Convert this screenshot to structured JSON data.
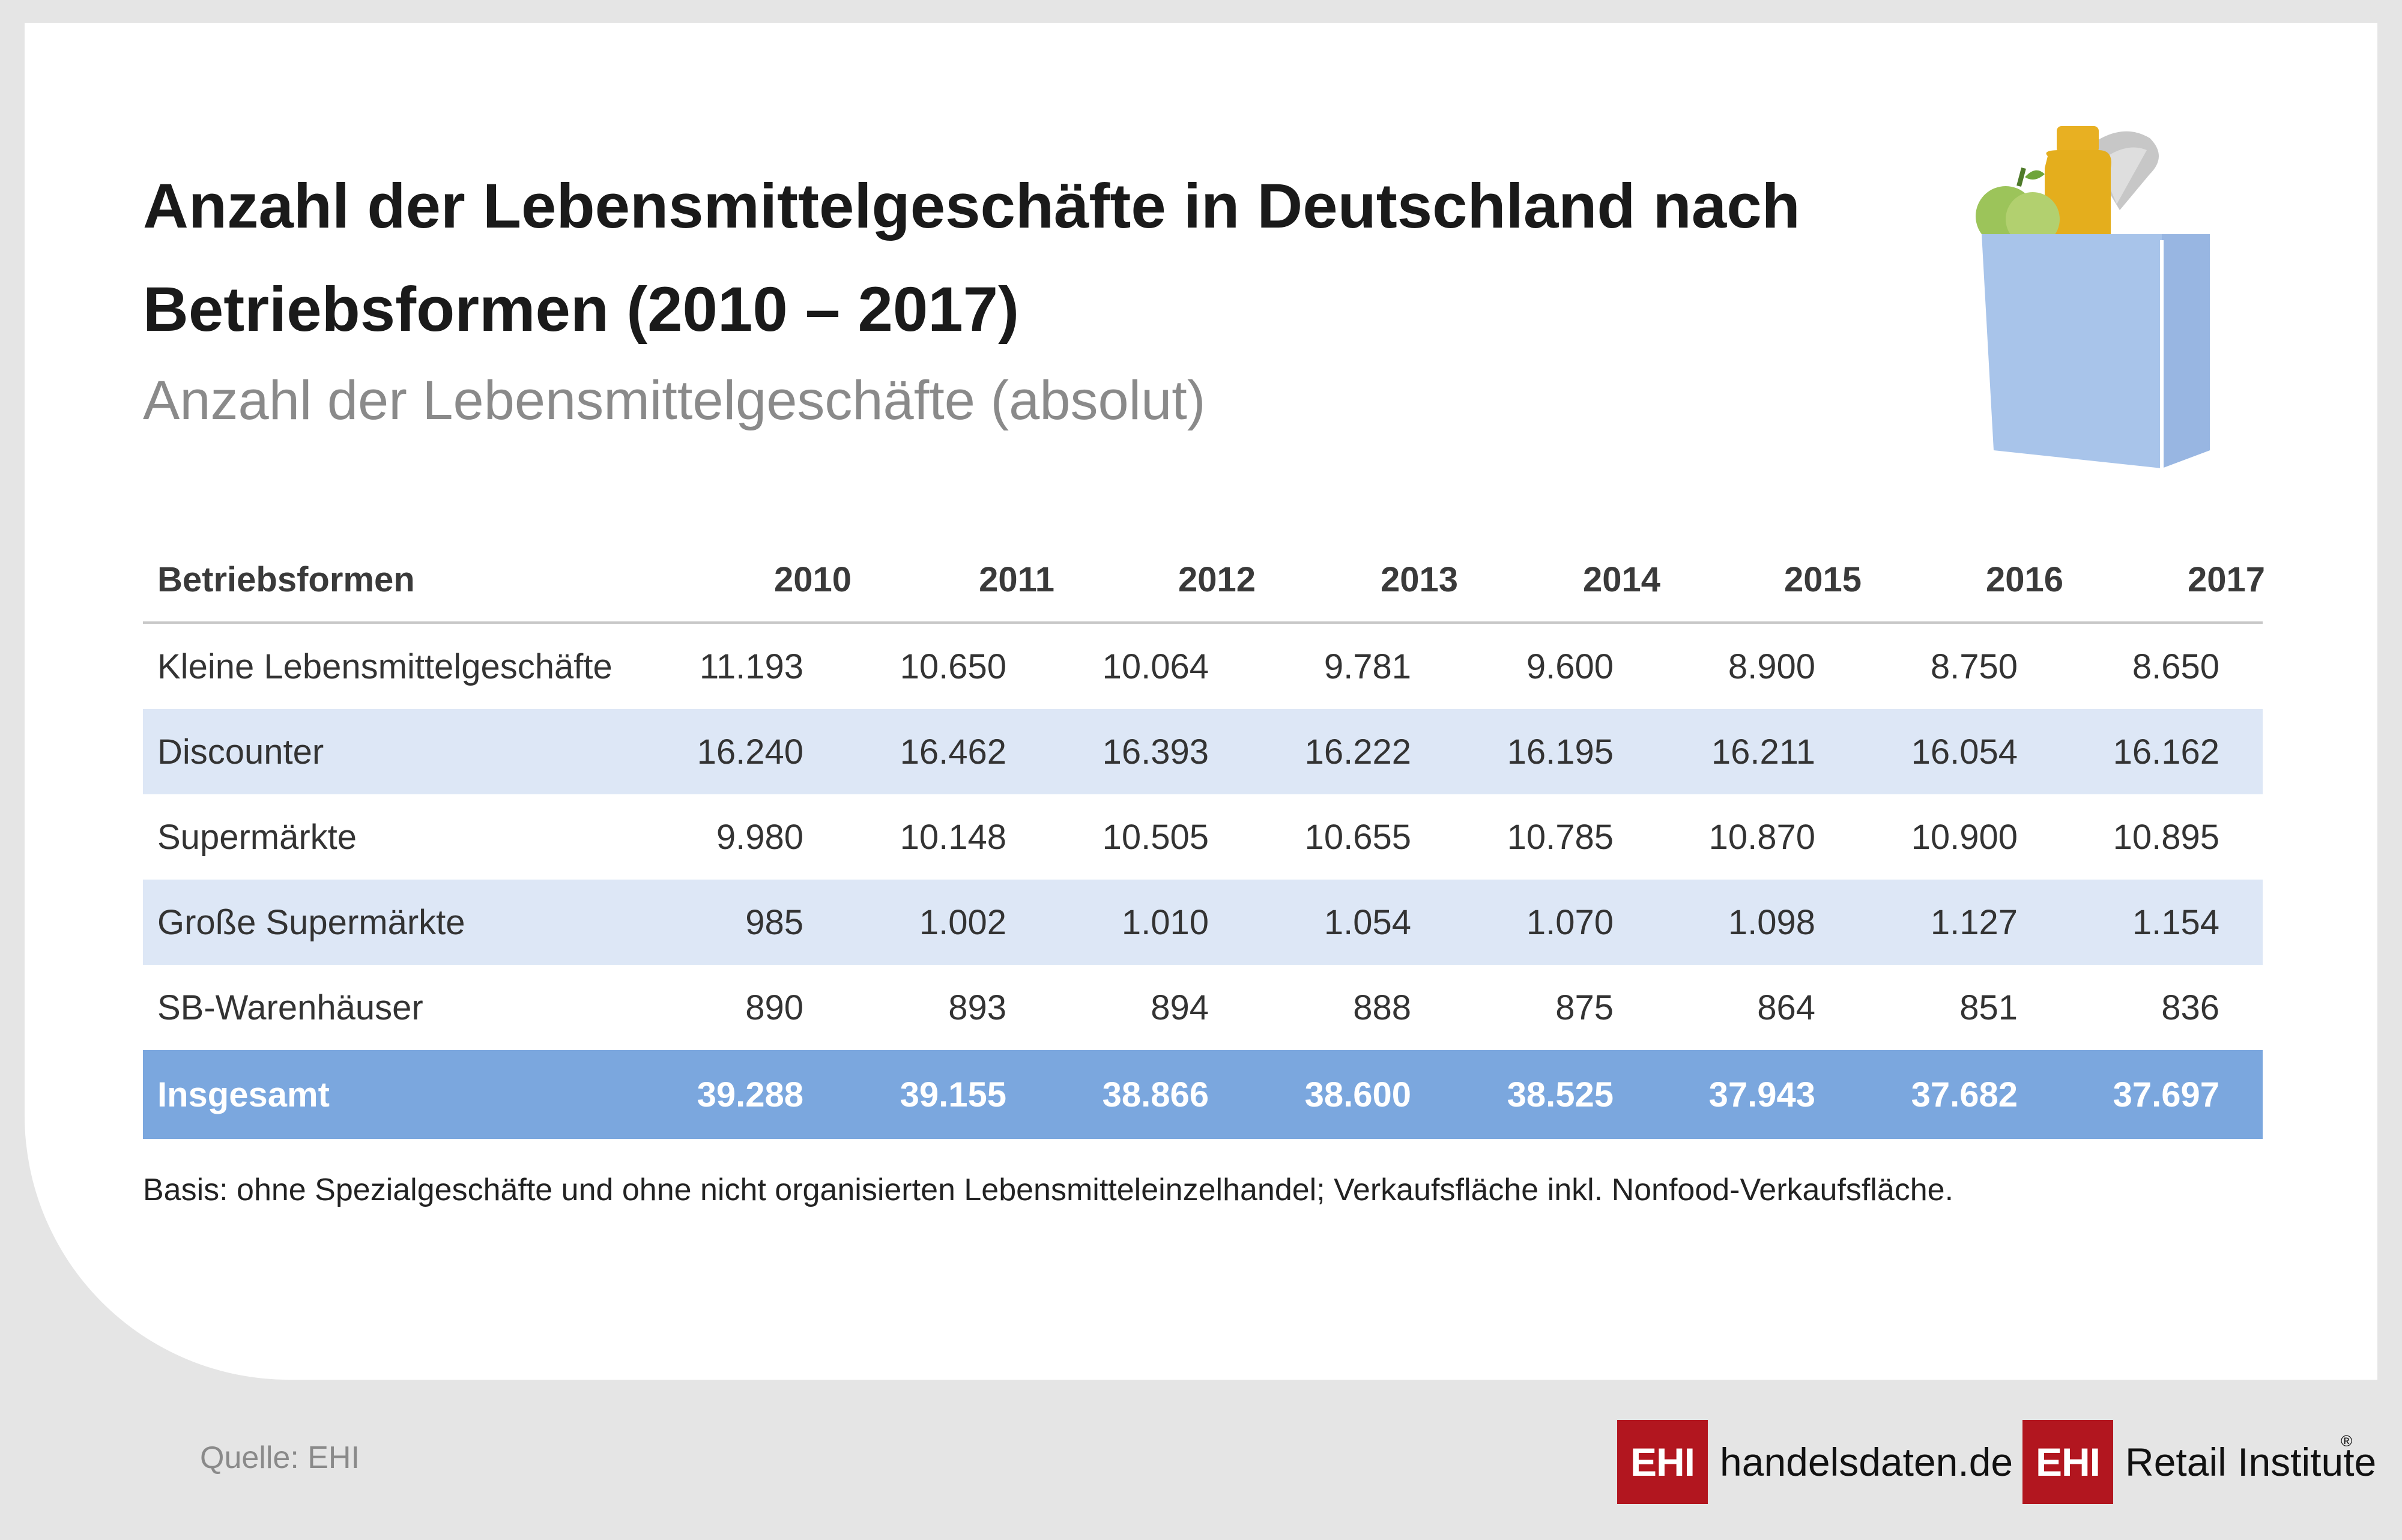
{
  "header": {
    "title": "Anzahl der Lebensmittelgeschäfte in Deutschland nach Betriebsformen (2010 – 2017)",
    "subtitle": "Anzahl der Lebensmittelgeschäfte (absolut)"
  },
  "chart_data": {
    "type": "table",
    "title": "Anzahl der Lebensmittelgeschäfte in Deutschland nach Betriebsformen (2010 – 2017)",
    "subtitle": "Anzahl der Lebensmittelgeschäfte (absolut)",
    "columns": [
      "Betriebsformen",
      "2010",
      "2011",
      "2012",
      "2013",
      "2014",
      "2015",
      "2016",
      "2017"
    ],
    "rows": [
      {
        "label": "Kleine Lebensmittelgeschäfte",
        "values": [
          "11.193",
          "10.650",
          "10.064",
          "9.781",
          "9.600",
          "8.900",
          "8.750",
          "8.650"
        ]
      },
      {
        "label": "Discounter",
        "values": [
          "16.240",
          "16.462",
          "16.393",
          "16.222",
          "16.195",
          "16.211",
          "16.054",
          "16.162"
        ]
      },
      {
        "label": "Supermärkte",
        "values": [
          "9.980",
          "10.148",
          "10.505",
          "10.655",
          "10.785",
          "10.870",
          "10.900",
          "10.895"
        ]
      },
      {
        "label": "Große Supermärkte",
        "values": [
          "985",
          "1.002",
          "1.010",
          "1.054",
          "1.070",
          "1.098",
          "1.127",
          "1.154"
        ]
      },
      {
        "label": "SB-Warenhäuser",
        "values": [
          "890",
          "893",
          "894",
          "888",
          "875",
          "864",
          "851",
          "836"
        ]
      }
    ],
    "total": {
      "label": "Insgesamt",
      "values": [
        "39.288",
        "39.155",
        "38.866",
        "38.600",
        "38.525",
        "37.943",
        "37.682",
        "37.697"
      ]
    }
  },
  "footnote": "Basis: ohne Spezialgeschäfte und ohne nicht organisierten Lebensmitteleinzelhandel; Verkaufsfläche inkl. Nonfood-Verkaufsfläche.",
  "source": "Quelle: EHI",
  "logos": [
    {
      "box": "EHI",
      "text": "handelsdaten.de"
    },
    {
      "box": "EHI",
      "text": "Retail Institute",
      "mark": "®"
    }
  ],
  "colors": {
    "header_rule": "#c8c8c8",
    "alt_row": "#dde7f6",
    "total_row": "#7ba7de",
    "logo_red": "#b2161f"
  },
  "icons": [
    "grocery-bag-icon"
  ]
}
